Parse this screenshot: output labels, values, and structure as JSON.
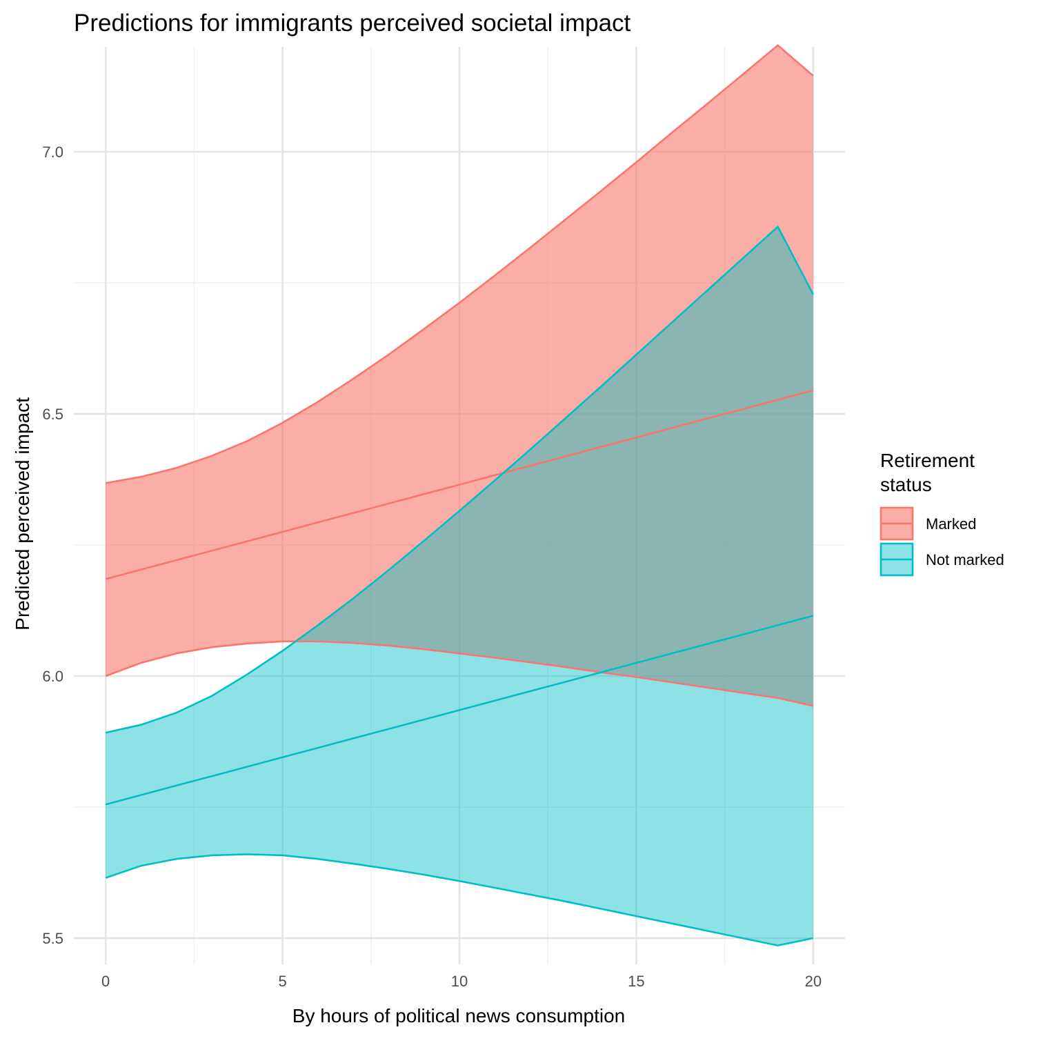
{
  "chart_data": {
    "type": "area",
    "title": "Predictions for immigrants perceived societal impact",
    "xlabel": "By hours of political news consumption",
    "ylabel": "Predicted perceived impact",
    "xlim": [
      -0.9,
      20.9
    ],
    "ylim": [
      5.45,
      7.2
    ],
    "x_ticks": [
      0,
      5,
      10,
      15,
      20
    ],
    "x_tick_labels": [
      "0",
      "5",
      "10",
      "15",
      "20"
    ],
    "y_ticks": [
      5.5,
      6.0,
      6.5,
      7.0
    ],
    "y_tick_labels": [
      "5.5",
      "6.0",
      "6.5",
      "7.0"
    ],
    "x_minor_ticks": [
      2.5,
      7.5,
      12.5,
      17.5
    ],
    "y_minor_ticks": [
      5.75,
      6.25,
      6.75
    ],
    "grid": true,
    "legend": {
      "title_lines": [
        "Retirement",
        "status"
      ],
      "position": "right"
    },
    "x": [
      0,
      1,
      2,
      3,
      4,
      5,
      6,
      7,
      8,
      9,
      10,
      11,
      12,
      13,
      14,
      15,
      16,
      17,
      18,
      19,
      20
    ],
    "series": [
      {
        "name": "Marked",
        "color": "#F8766D",
        "fill_opacity": 0.6,
        "fit": [
          6.185,
          6.203,
          6.221,
          6.239,
          6.257,
          6.275,
          6.293,
          6.311,
          6.329,
          6.347,
          6.365,
          6.383,
          6.401,
          6.419,
          6.437,
          6.455,
          6.473,
          6.491,
          6.509,
          6.527,
          6.545
        ],
        "lower": [
          6.0,
          6.025,
          6.043,
          6.055,
          6.062,
          6.066,
          6.066,
          6.063,
          6.058,
          6.051,
          6.043,
          6.035,
          6.026,
          6.017,
          6.007,
          5.998,
          5.988,
          5.978,
          5.968,
          5.958,
          5.943
        ],
        "upper": [
          6.368,
          6.38,
          6.397,
          6.42,
          6.448,
          6.483,
          6.523,
          6.567,
          6.613,
          6.662,
          6.712,
          6.764,
          6.817,
          6.871,
          6.925,
          6.98,
          7.036,
          7.091,
          7.147,
          7.203,
          7.145
        ]
      },
      {
        "name": "Not marked",
        "color": "#00BFC4",
        "fill_opacity": 0.45,
        "fit": [
          5.755,
          5.773,
          5.791,
          5.809,
          5.827,
          5.845,
          5.863,
          5.881,
          5.899,
          5.917,
          5.935,
          5.953,
          5.971,
          5.989,
          6.007,
          6.025,
          6.043,
          6.061,
          6.079,
          6.097,
          6.115
        ],
        "lower": [
          5.615,
          5.638,
          5.651,
          5.658,
          5.66,
          5.658,
          5.651,
          5.642,
          5.632,
          5.621,
          5.609,
          5.596,
          5.583,
          5.57,
          5.556,
          5.542,
          5.528,
          5.514,
          5.5,
          5.486,
          5.5
        ],
        "upper": [
          5.892,
          5.907,
          5.93,
          5.962,
          6.003,
          6.048,
          6.097,
          6.148,
          6.202,
          6.258,
          6.315,
          6.373,
          6.432,
          6.492,
          6.552,
          6.613,
          6.674,
          6.735,
          6.796,
          6.857,
          6.728
        ]
      }
    ]
  }
}
